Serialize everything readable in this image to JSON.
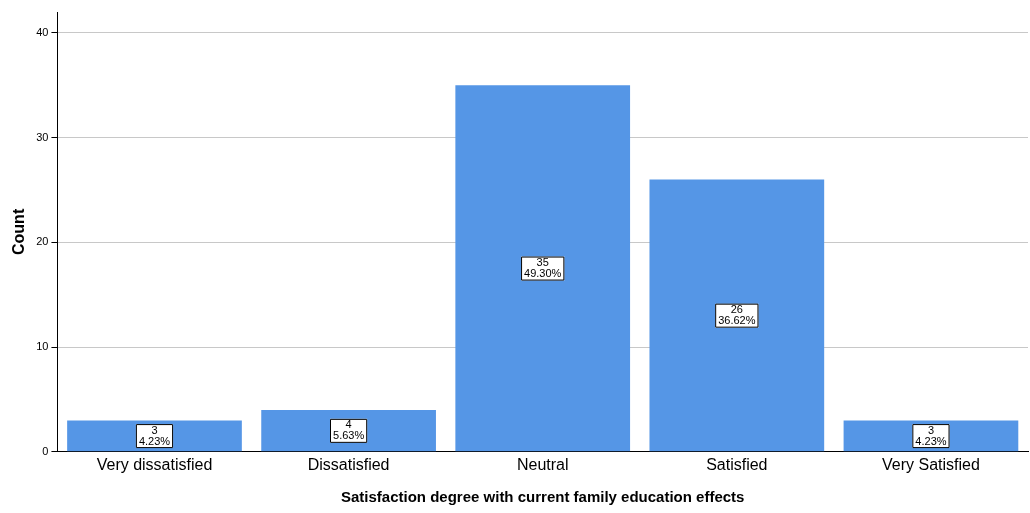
{
  "chart_data": {
    "type": "bar",
    "xlabel": "Satisfaction degree with current family education effects",
    "ylabel": "Count",
    "categories": [
      "Very dissatisfied",
      "Dissatisfied",
      "Neutral",
      "Satisfied",
      "Very Satisfied"
    ],
    "values": [
      3,
      4,
      35,
      26,
      3
    ],
    "value_labels": [
      "3\n4.23%",
      "4\n5.63%",
      "35\n49.30%",
      "26\n36.62%",
      "3\n4.23%"
    ],
    "color": "#5596e6",
    "ylim": [
      0,
      42
    ],
    "yticks": [
      0,
      10,
      20,
      30,
      40
    ],
    "grid": "y",
    "legend": false
  }
}
